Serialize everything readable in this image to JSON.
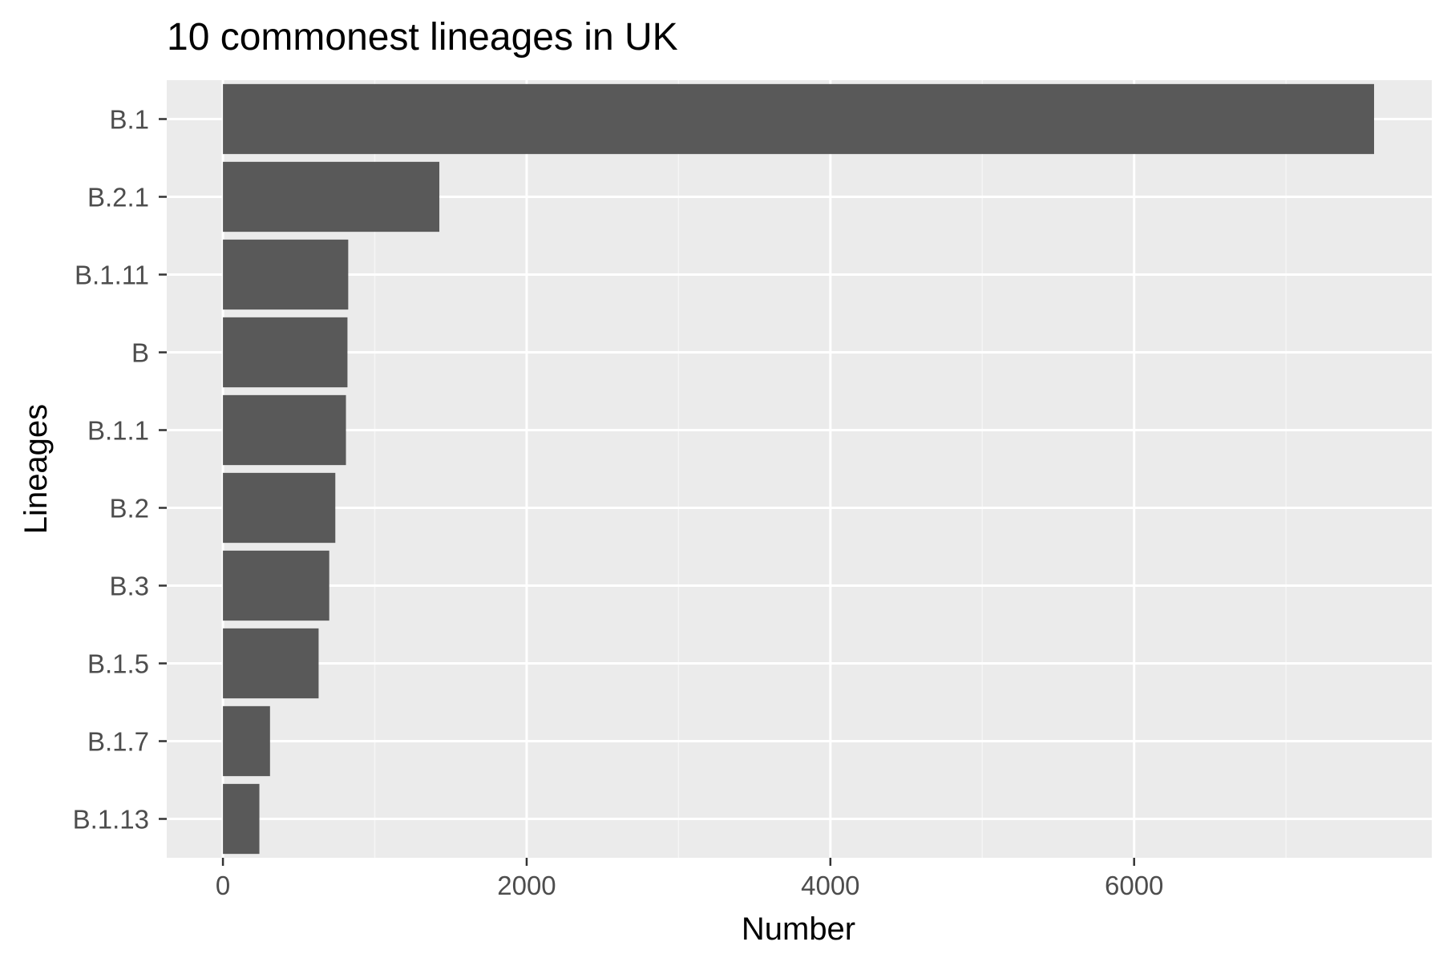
{
  "chart_data": {
    "type": "bar",
    "orientation": "horizontal",
    "title": "10 commonest lineages in UK",
    "xlabel": "Number",
    "ylabel": "Lineages",
    "categories": [
      "B.1",
      "B.2.1",
      "B.1.11",
      "B",
      "B.1.1",
      "B.2",
      "B.3",
      "B.1.5",
      "B.1.7",
      "B.1.13"
    ],
    "values": [
      7580,
      1425,
      825,
      820,
      810,
      740,
      700,
      630,
      310,
      240
    ],
    "xlim": [
      -370,
      7960
    ],
    "x_ticks": [
      0,
      2000,
      4000,
      6000
    ],
    "x_tick_labels": [
      "0",
      "2000",
      "4000",
      "6000"
    ],
    "grid": true,
    "legend": "none",
    "colors": {
      "bar": "#595959",
      "panel": "#ebebeb",
      "grid_major": "#ffffff",
      "grid_minor": "#f5f5f5",
      "tick": "#333333",
      "tick_label": "#4d4d4d",
      "text": "#000000"
    }
  }
}
